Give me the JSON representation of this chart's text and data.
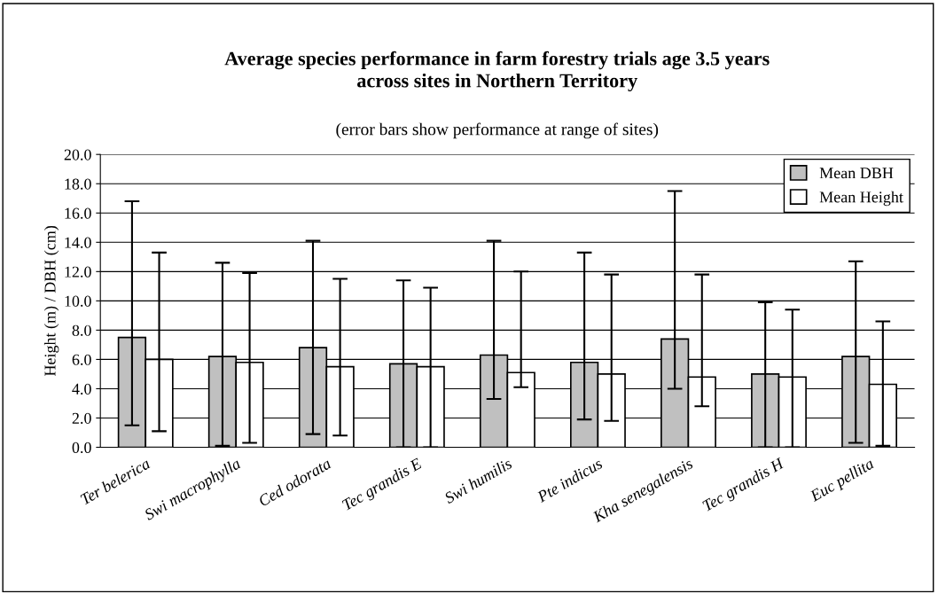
{
  "chart_data": {
    "type": "bar",
    "title": "Average species performance in farm forestry trials age 3.5 years\nacross sites in Northern Territory",
    "subtitle": "(error bars show performance at range of sites)",
    "ylabel": "Height (m) / DBH (cm)",
    "categories": [
      "Ter belerica",
      "Swi macrophylla",
      "Ced odorata",
      "Tec grandis E",
      "Swi humilis",
      "Pte indicus",
      "Kha senegalensis",
      "Tec grandis H",
      "Euc pellita"
    ],
    "series": [
      {
        "name": "Mean DBH",
        "color": "#c0c0c0",
        "values": [
          7.5,
          6.2,
          6.8,
          5.7,
          6.3,
          5.8,
          7.4,
          5.0,
          6.2
        ],
        "errors": [
          [
            1.5,
            16.8
          ],
          [
            0.1,
            12.6
          ],
          [
            0.9,
            14.1
          ],
          [
            0.0,
            11.4
          ],
          [
            3.3,
            14.1
          ],
          [
            1.9,
            13.3
          ],
          [
            4.0,
            17.5
          ],
          [
            0.0,
            9.9
          ],
          [
            0.3,
            12.7
          ]
        ]
      },
      {
        "name": "Mean Height",
        "color": "#ffffff",
        "values": [
          6.0,
          5.8,
          5.5,
          5.5,
          5.1,
          5.0,
          4.8,
          4.8,
          4.3
        ],
        "errors": [
          [
            1.1,
            13.3
          ],
          [
            0.3,
            11.9
          ],
          [
            0.8,
            11.5
          ],
          [
            0.0,
            10.9
          ],
          [
            4.1,
            12.0
          ],
          [
            1.8,
            11.8
          ],
          [
            2.8,
            11.8
          ],
          [
            0.0,
            9.4
          ],
          [
            0.1,
            8.6
          ]
        ]
      }
    ],
    "ylim": [
      0,
      20
    ],
    "yticks": [
      {
        "value": 0,
        "label": "0.0"
      },
      {
        "value": 2,
        "label": "2.0"
      },
      {
        "value": 4,
        "label": "4.0"
      },
      {
        "value": 6,
        "label": "6.0"
      },
      {
        "value": 8,
        "label": "8.0"
      },
      {
        "value": 10,
        "label": "10.0"
      },
      {
        "value": 12,
        "label": "12.0"
      },
      {
        "value": 14,
        "label": "14.0"
      },
      {
        "value": 16,
        "label": "16.0"
      },
      {
        "value": 18,
        "label": "18.0"
      },
      {
        "value": 20,
        "label": "20.0"
      }
    ],
    "grid": "y",
    "legend": "top right"
  }
}
